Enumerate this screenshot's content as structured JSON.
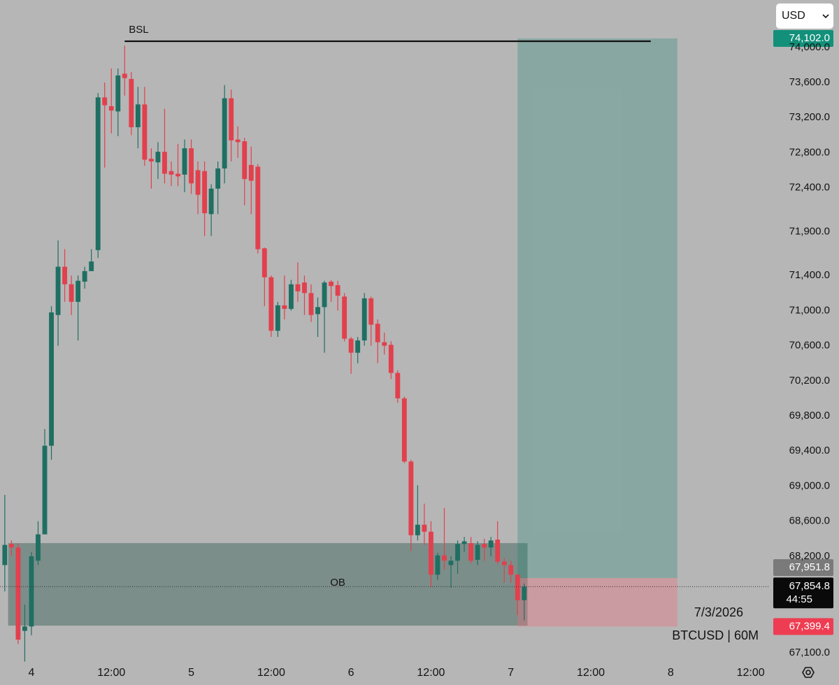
{
  "chart_data": {
    "type": "candlestick",
    "up_color": "#1f6f62",
    "down_color": "#e2404d",
    "x": [
      -4,
      -3,
      -2,
      -1,
      0,
      1,
      2,
      3,
      4,
      5,
      6,
      7,
      8,
      9,
      10,
      11,
      12,
      13,
      14,
      15,
      16,
      17,
      18,
      19,
      20,
      21,
      22,
      23,
      24,
      25,
      26,
      27,
      28,
      29,
      30,
      31,
      32,
      33,
      34,
      35,
      36,
      37,
      38,
      39,
      40,
      41,
      42,
      43,
      44,
      45,
      46,
      47,
      48,
      49,
      50,
      51,
      52,
      53,
      54,
      55,
      56,
      57,
      58,
      59,
      60,
      61,
      62,
      63,
      64,
      65,
      66,
      67,
      68,
      69,
      70,
      71,
      72,
      73,
      74
    ],
    "open": [
      68100,
      68340,
      68300,
      67350,
      67400,
      68150,
      68450,
      69460,
      70950,
      71500,
      71300,
      71100,
      71330,
      71450,
      71690,
      73430,
      73330,
      73270,
      73700,
      73640,
      73090,
      73350,
      72730,
      72690,
      72810,
      72590,
      72560,
      72550,
      72850,
      72600,
      72590,
      72100,
      72390,
      72620,
      73420,
      72950,
      72930,
      72660,
      72640,
      71710,
      71380,
      70770,
      71060,
      71020,
      71300,
      71320,
      71200,
      70960,
      71040,
      71330,
      71290,
      71160,
      70680,
      70520,
      70660,
      71140,
      70850,
      70640,
      70610,
      70290,
      70000,
      69280,
      68440,
      68560,
      68480,
      67990,
      68210,
      68100,
      68150,
      68340,
      68350,
      68160,
      68340,
      68300,
      68390,
      68140,
      68100,
      67990,
      67700
    ],
    "high": [
      68900,
      68380,
      68350,
      67650,
      68250,
      68600,
      69650,
      71050,
      71800,
      71700,
      71400,
      71400,
      71500,
      71700,
      73480,
      73600,
      73760,
      73760,
      74020,
      73720,
      73550,
      73550,
      72850,
      72920,
      73300,
      72700,
      72900,
      72950,
      72950,
      72700,
      72700,
      72440,
      72700,
      73570,
      73520,
      73100,
      72970,
      72870,
      72670,
      71720,
      71400,
      71100,
      71400,
      71350,
      71550,
      71400,
      71300,
      71150,
      71340,
      71350,
      71340,
      71200,
      70700,
      70700,
      71200,
      71160,
      70900,
      70750,
      70650,
      70320,
      70020,
      69300,
      69010,
      68800,
      68600,
      68240,
      68750,
      68200,
      68380,
      68420,
      68420,
      68370,
      68400,
      68420,
      68600,
      68180,
      68150,
      68000,
      67890
    ],
    "low": [
      67800,
      68200,
      67200,
      67000,
      67300,
      68100,
      68450,
      69300,
      70600,
      71100,
      70950,
      70660,
      71250,
      71450,
      71600,
      72630,
      73020,
      72990,
      73450,
      73000,
      72850,
      72650,
      72390,
      72500,
      72450,
      72420,
      72420,
      72350,
      72330,
      72100,
      71850,
      71850,
      72100,
      72450,
      72700,
      72740,
      72200,
      72100,
      71650,
      71050,
      70700,
      70700,
      70900,
      71000,
      71100,
      70950,
      70870,
      70700,
      70520,
      71100,
      71000,
      70650,
      70280,
      70400,
      70600,
      70600,
      70400,
      70500,
      70220,
      69950,
      69260,
      68260,
      68380,
      68330,
      67850,
      67930,
      68050,
      67840,
      68000,
      68250,
      68120,
      68100,
      68150,
      68200,
      68110,
      67900,
      67900,
      67530,
      67470
    ],
    "close": [
      68330,
      68300,
      67250,
      67400,
      68200,
      68450,
      69460,
      70980,
      71500,
      71300,
      71100,
      71340,
      71450,
      71560,
      73430,
      73340,
      73280,
      73680,
      73650,
      73090,
      73350,
      72720,
      72700,
      72810,
      72560,
      72550,
      72530,
      72850,
      72450,
      72320,
      72110,
      72390,
      72620,
      73420,
      72940,
      72920,
      72500,
      72480,
      71700,
      71380,
      70770,
      71060,
      71020,
      71300,
      71220,
      71200,
      70950,
      71040,
      71320,
      71280,
      71170,
      70680,
      70520,
      70660,
      71140,
      70840,
      70640,
      70600,
      70290,
      70000,
      69280,
      68440,
      68560,
      68480,
      67990,
      68210,
      68150,
      68150,
      68340,
      68370,
      68150,
      68330,
      68300,
      68380,
      68140,
      68100,
      67990,
      67700,
      67855
    ],
    "xlim": [
      -4.72,
      110.77
    ],
    "xticks": [
      {
        "value": 0,
        "label": "4"
      },
      {
        "value": 12,
        "label": "12:00"
      },
      {
        "value": 24,
        "label": "5"
      },
      {
        "value": 36,
        "label": "12:00"
      },
      {
        "value": 48,
        "label": "6"
      },
      {
        "value": 60,
        "label": "12:00"
      },
      {
        "value": 72,
        "label": "7"
      },
      {
        "value": 84,
        "label": "12:00"
      },
      {
        "value": 96,
        "label": "8"
      },
      {
        "value": 108,
        "label": "12:00"
      }
    ],
    "ylim": [
      67012,
      74540
    ],
    "yticks": [
      {
        "value": 74000,
        "label": "74,000.0"
      },
      {
        "value": 73600,
        "label": "73,600.0"
      },
      {
        "value": 73200,
        "label": "73,200.0"
      },
      {
        "value": 72800,
        "label": "72,800.0"
      },
      {
        "value": 72400,
        "label": "72,400.0"
      },
      {
        "value": 71900,
        "label": "71,900.0"
      },
      {
        "value": 71400,
        "label": "71,400.0"
      },
      {
        "value": 71000,
        "label": "71,000.0"
      },
      {
        "value": 70600,
        "label": "70,600.0"
      },
      {
        "value": 70200,
        "label": "70,200.0"
      },
      {
        "value": 69800,
        "label": "69,800.0"
      },
      {
        "value": 69400,
        "label": "69,400.0"
      },
      {
        "value": 69000,
        "label": "69,000.0"
      },
      {
        "value": 68600,
        "label": "68,600.0"
      },
      {
        "value": 68200,
        "label": "68,200.0"
      },
      {
        "value": 67100,
        "label": "67,100.0"
      }
    ],
    "bsl": {
      "label": "BSL",
      "price": 74102,
      "from": 14,
      "to": 93
    },
    "ob_zone": {
      "label": "OB",
      "top": 68350,
      "bottom": 67410,
      "from": -3.5,
      "to": 74.5
    },
    "position": {
      "from": 73,
      "to": 97,
      "target": {
        "value": 74102,
        "label": "74,102.0"
      },
      "entry": {
        "value": 67951.8,
        "label": "67,951.8"
      },
      "stop": {
        "value": 67399.4,
        "label": "67,399.4"
      }
    },
    "current": {
      "value": 67854.8,
      "label": "67,854.8",
      "countdown": "44:55"
    }
  },
  "ui": {
    "currency": "USD",
    "date": "7/3/2026",
    "symbol": "BTCUSD | 60M"
  }
}
